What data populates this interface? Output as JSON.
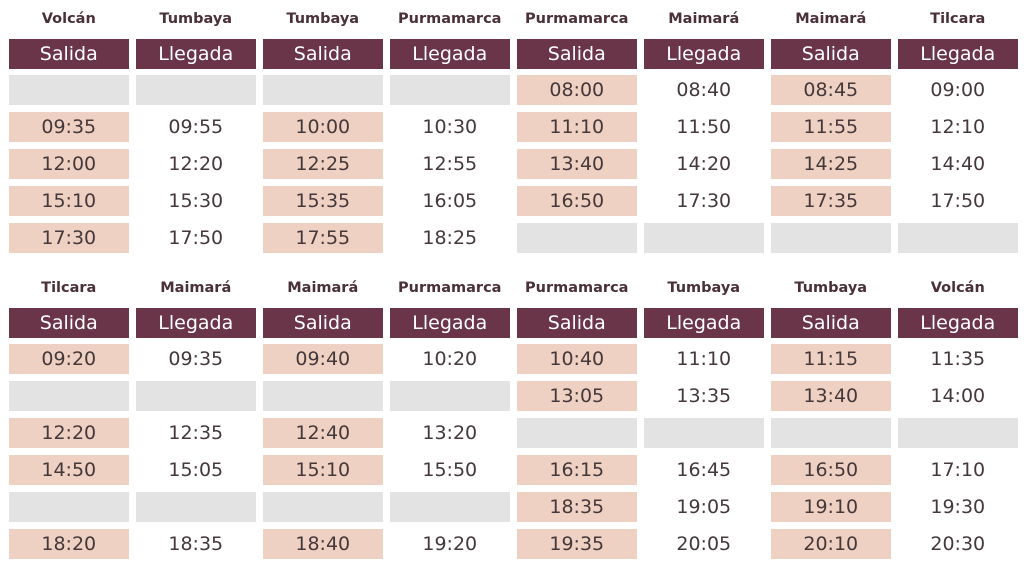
{
  "colors": {
    "header_bg": "#6a3548",
    "departure_bg": "#eed1c2",
    "empty_bg": "#e3e3e3",
    "station_text": "#4a3038"
  },
  "outbound": {
    "columns": [
      {
        "station": "Volcán",
        "header": "Salida",
        "kind": "dep",
        "times": [
          "",
          "09:35",
          "12:00",
          "15:10",
          "17:30"
        ]
      },
      {
        "station": "Tumbaya",
        "header": "Llegada",
        "kind": "arr",
        "times": [
          "",
          "09:55",
          "12:20",
          "15:30",
          "17:50"
        ]
      },
      {
        "station": "Tumbaya",
        "header": "Salida",
        "kind": "dep",
        "times": [
          "",
          "10:00",
          "12:25",
          "15:35",
          "17:55"
        ]
      },
      {
        "station": "Purmamarca",
        "header": "Llegada",
        "kind": "arr",
        "times": [
          "",
          "10:30",
          "12:55",
          "16:05",
          "18:25"
        ]
      },
      {
        "station": "Purmamarca",
        "header": "Salida",
        "kind": "dep",
        "times": [
          "08:00",
          "11:10",
          "13:40",
          "16:50",
          ""
        ]
      },
      {
        "station": "Maimará",
        "header": "Llegada",
        "kind": "arr",
        "times": [
          "08:40",
          "11:50",
          "14:20",
          "17:30",
          ""
        ]
      },
      {
        "station": "Maimará",
        "header": "Salida",
        "kind": "dep",
        "times": [
          "08:45",
          "11:55",
          "14:25",
          "17:35",
          ""
        ]
      },
      {
        "station": "Tilcara",
        "header": "Llegada",
        "kind": "arr",
        "times": [
          "09:00",
          "12:10",
          "14:40",
          "17:50",
          ""
        ]
      }
    ]
  },
  "return": {
    "columns": [
      {
        "station": "Tilcara",
        "header": "Salida",
        "kind": "dep",
        "times": [
          "09:20",
          "",
          "12:20",
          "14:50",
          "",
          "18:20"
        ]
      },
      {
        "station": "Maimará",
        "header": "Llegada",
        "kind": "arr",
        "times": [
          "09:35",
          "",
          "12:35",
          "15:05",
          "",
          "18:35"
        ]
      },
      {
        "station": "Maimará",
        "header": "Salida",
        "kind": "dep",
        "times": [
          "09:40",
          "",
          "12:40",
          "15:10",
          "",
          "18:40"
        ]
      },
      {
        "station": "Purmamarca",
        "header": "Llegada",
        "kind": "arr",
        "times": [
          "10:20",
          "",
          "13:20",
          "15:50",
          "",
          "19:20"
        ]
      },
      {
        "station": "Purmamarca",
        "header": "Salida",
        "kind": "dep",
        "times": [
          "10:40",
          "13:05",
          "",
          "16:15",
          "18:35",
          "19:35"
        ]
      },
      {
        "station": "Tumbaya",
        "header": "Llegada",
        "kind": "arr",
        "times": [
          "11:10",
          "13:35",
          "",
          "16:45",
          "19:05",
          "20:05"
        ]
      },
      {
        "station": "Tumbaya",
        "header": "Salida",
        "kind": "dep",
        "times": [
          "11:15",
          "13:40",
          "",
          "16:50",
          "19:10",
          "20:10"
        ]
      },
      {
        "station": "Volcán",
        "header": "Llegada",
        "kind": "arr",
        "times": [
          "11:35",
          "14:00",
          "",
          "17:10",
          "19:30",
          "20:30"
        ]
      }
    ]
  }
}
